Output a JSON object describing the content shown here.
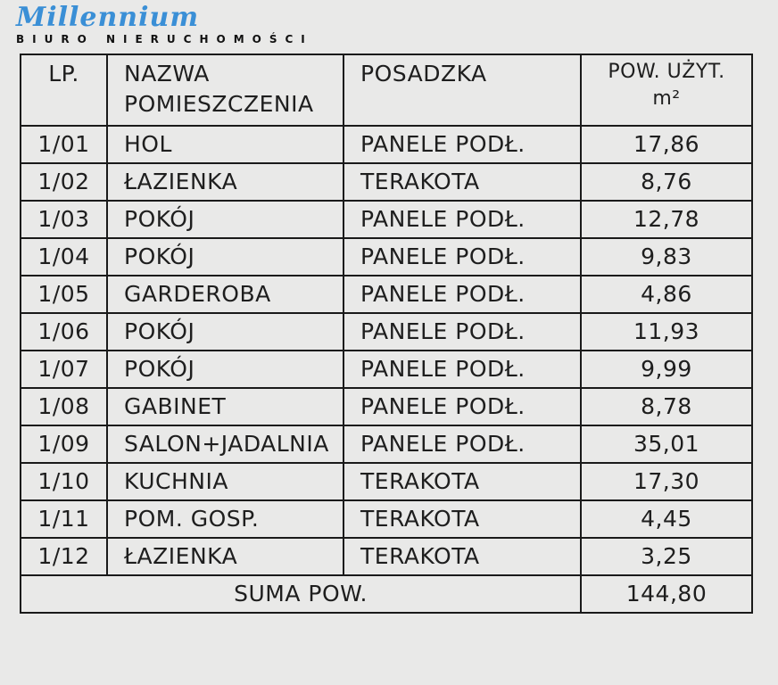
{
  "logo": {
    "brand": "Millennium",
    "subtitle": "BIURO NIERUCHOMOŚCI",
    "color": "#3a8fd6"
  },
  "table": {
    "headers": [
      "LP.",
      "NAZWA POMIESZCZENIA",
      "POSADZKA",
      "POW. UŻYT.",
      "m²"
    ],
    "rows": [
      {
        "lp": "1/01",
        "name": "HOL",
        "floor": "PANELE PODŁ.",
        "area": "17,86"
      },
      {
        "lp": "1/02",
        "name": "ŁAZIENKA",
        "floor": "TERAKOTA",
        "area": "8,76"
      },
      {
        "lp": "1/03",
        "name": "POKÓJ",
        "floor": "PANELE PODŁ.",
        "area": "12,78"
      },
      {
        "lp": "1/04",
        "name": "POKÓJ",
        "floor": "PANELE PODŁ.",
        "area": "9,83"
      },
      {
        "lp": "1/05",
        "name": "GARDEROBA",
        "floor": "PANELE PODŁ.",
        "area": "4,86"
      },
      {
        "lp": "1/06",
        "name": "POKÓJ",
        "floor": "PANELE PODŁ.",
        "area": "11,93"
      },
      {
        "lp": "1/07",
        "name": "POKÓJ",
        "floor": "PANELE PODŁ.",
        "area": "9,99"
      },
      {
        "lp": "1/08",
        "name": "GABINET",
        "floor": "PANELE PODŁ.",
        "area": "8,78"
      },
      {
        "lp": "1/09",
        "name": "SALON+JADALNIA",
        "floor": "PANELE PODŁ.",
        "area": "35,01"
      },
      {
        "lp": "1/10",
        "name": "KUCHNIA",
        "floor": "TERAKOTA",
        "area": "17,30"
      },
      {
        "lp": "1/11",
        "name": "POM. GOSP.",
        "floor": "TERAKOTA",
        "area": "4,45"
      },
      {
        "lp": "1/12",
        "name": "ŁAZIENKA",
        "floor": "TERAKOTA",
        "area": "3,25"
      }
    ],
    "sum_label": "SUMA POW.",
    "sum_value": "144,80"
  }
}
